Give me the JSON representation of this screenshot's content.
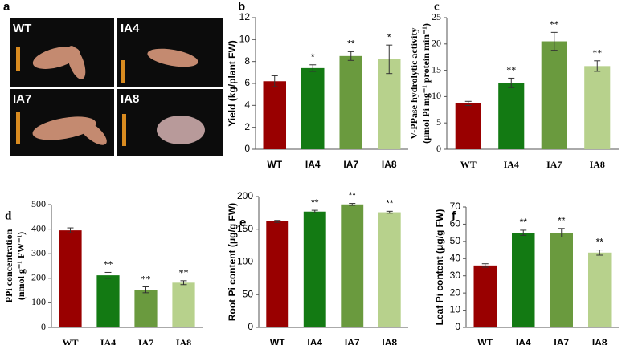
{
  "photo_panel": {
    "label": "a",
    "captions": [
      "WT",
      "IA4",
      "IA7",
      "IA8"
    ]
  },
  "chart_data": [
    {
      "type": "bar",
      "panel_label": "b",
      "ylabel": [
        "Yield (kg/plant FW)"
      ],
      "categories": [
        "WT",
        "IA4",
        "IA7",
        "IA8"
      ],
      "values": [
        6.2,
        7.4,
        8.5,
        8.2
      ],
      "errors": [
        0.5,
        0.3,
        0.4,
        1.3
      ],
      "annotations": [
        null,
        "*",
        "**",
        "*"
      ],
      "colors": [
        "#990000",
        "#137a13",
        "#6a9a3e",
        "#b7d18c"
      ],
      "ylim": [
        0,
        12
      ],
      "yticks": [
        0,
        2,
        4,
        6,
        8,
        10,
        12
      ]
    },
    {
      "type": "bar",
      "panel_label": "c",
      "ylabel": [
        "V-PPase hydrolytic activity",
        "(μmol Pi mg⁻¹ protein min⁻¹)"
      ],
      "categories": [
        "WT",
        "IA4",
        "IA7",
        "IA8"
      ],
      "values": [
        8.7,
        12.6,
        20.5,
        15.8
      ],
      "errors": [
        0.4,
        0.9,
        1.7,
        1.0
      ],
      "annotations": [
        null,
        "**",
        "**",
        "**"
      ],
      "colors": [
        "#990000",
        "#137a13",
        "#6a9a3e",
        "#b7d18c"
      ],
      "ylim": [
        0,
        25
      ],
      "yticks": [
        0,
        5,
        10,
        15,
        20,
        25
      ]
    },
    {
      "type": "bar",
      "panel_label": "d",
      "ylabel": [
        "PPi concentration",
        "(nmol g⁻¹ FW⁻¹)"
      ],
      "categories": [
        "WT",
        "IA4",
        "IA7",
        "IA8"
      ],
      "values": [
        395,
        212,
        153,
        182
      ],
      "errors": [
        10,
        12,
        12,
        8
      ],
      "annotations": [
        null,
        "**",
        "**",
        "**"
      ],
      "colors": [
        "#990000",
        "#137a13",
        "#6a9a3e",
        "#b7d18c"
      ],
      "ylim": [
        0,
        500
      ],
      "yticks": [
        0,
        100,
        200,
        300,
        400,
        500
      ]
    },
    {
      "type": "bar",
      "panel_label": "e",
      "ylabel": [
        "Root Pi content (μg/g FW)"
      ],
      "categories": [
        "WT",
        "IA4",
        "IA7",
        "IA8"
      ],
      "values": [
        162,
        177,
        188,
        176
      ],
      "errors": [
        1.5,
        2,
        1.5,
        1.5
      ],
      "annotations": [
        null,
        "**",
        "**",
        "**"
      ],
      "colors": [
        "#990000",
        "#137a13",
        "#6a9a3e",
        "#b7d18c"
      ],
      "ylim": [
        0,
        200
      ],
      "yticks": [
        0,
        50,
        100,
        150,
        200
      ]
    },
    {
      "type": "bar",
      "panel_label": "f",
      "ylabel": [
        "Leaf Pi content (μg/g FW)"
      ],
      "categories": [
        "WT",
        "IA4",
        "IA7",
        "IA8"
      ],
      "values": [
        36,
        55,
        55,
        43.5
      ],
      "errors": [
        1,
        1.5,
        2.5,
        1.5
      ],
      "annotations": [
        null,
        "**",
        "**",
        "**"
      ],
      "colors": [
        "#990000",
        "#137a13",
        "#6a9a3e",
        "#b7d18c"
      ],
      "ylim": [
        0,
        70
      ],
      "yticks": [
        0,
        10,
        20,
        30,
        40,
        50,
        60,
        70
      ]
    }
  ]
}
